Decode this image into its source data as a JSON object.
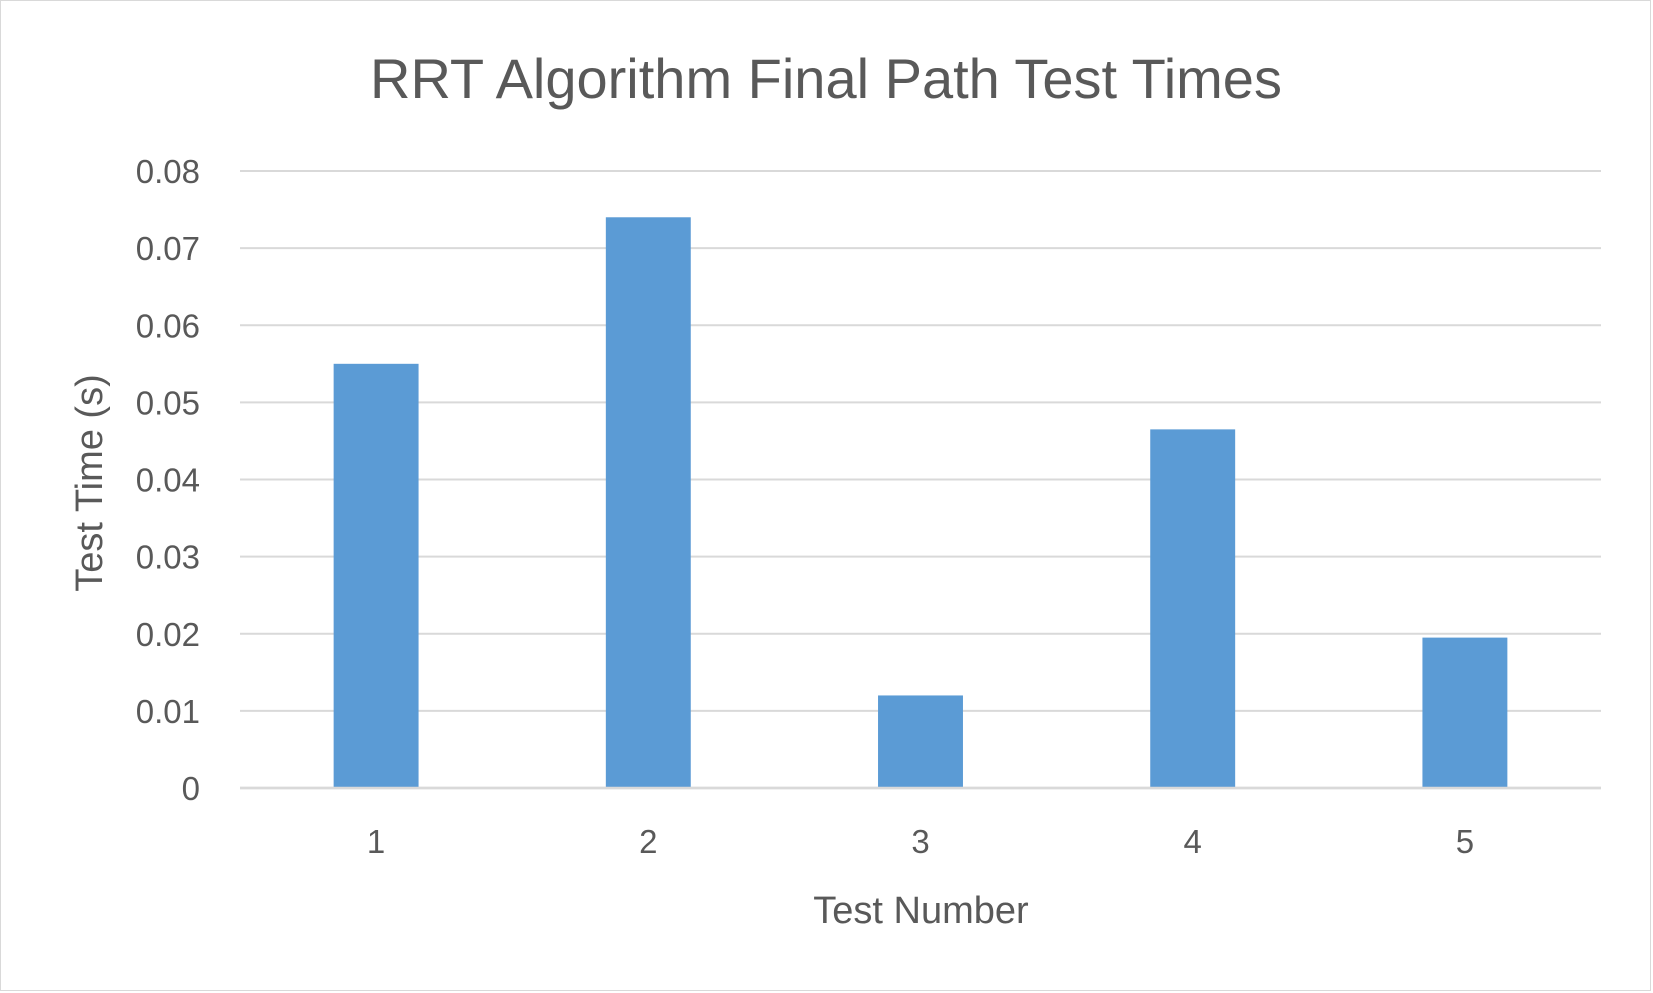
{
  "chart_data": {
    "type": "bar",
    "title": "RRT Algorithm Final Path Test Times",
    "xlabel": "Test Number",
    "ylabel": "Test Time (s)",
    "categories": [
      "1",
      "2",
      "3",
      "4",
      "5"
    ],
    "series": [
      {
        "values": [
          0.055,
          0.074,
          0.012,
          0.0465,
          0.0195
        ],
        "color": "#5b9bd5"
      }
    ],
    "ylim": [
      0,
      0.08
    ],
    "yticks": [
      "0",
      "0.01",
      "0.02",
      "0.03",
      "0.04",
      "0.05",
      "0.06",
      "0.07",
      "0.08"
    ],
    "grid": true,
    "legend": "none",
    "gridline_color": "#d9d9d9",
    "text_color": "#595959"
  }
}
